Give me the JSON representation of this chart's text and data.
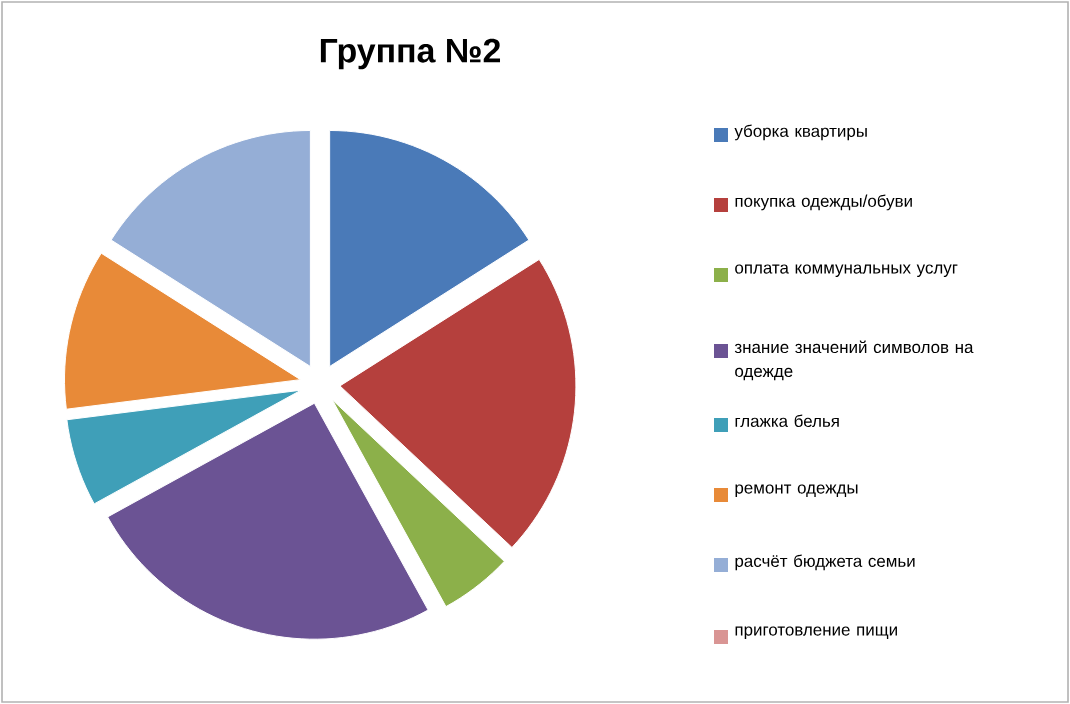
{
  "chart_data": {
    "type": "pie",
    "title": "Группа №2",
    "categories": [
      "уборка  квартиры",
      "покупка  одежды/обуви",
      "оплата  коммунальных  услуг",
      "знание  значений  символов  на одежде",
      "глажка  белья",
      "ремонт  одежды",
      "расчёт  бюджета  семьи",
      "приготовление  пищи"
    ],
    "values": [
      16,
      21,
      5,
      25,
      6,
      11,
      16,
      0
    ],
    "colors": [
      "#4a7ab8",
      "#b5403d",
      "#8cb04a",
      "#6b5394",
      "#3f9fb8",
      "#e88a38",
      "#95aed6",
      "#d99594"
    ],
    "legend": "right"
  }
}
